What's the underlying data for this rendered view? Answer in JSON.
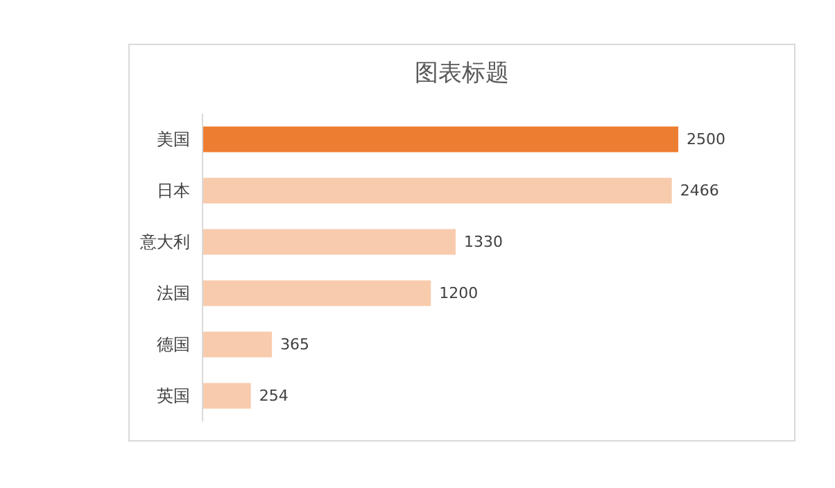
{
  "chart_data": {
    "type": "bar",
    "orientation": "horizontal",
    "title": "图表标题",
    "categories": [
      "美国",
      "日本",
      "意大利",
      "法国",
      "德国",
      "英国"
    ],
    "values": [
      2500,
      2466,
      1330,
      1200,
      365,
      254
    ],
    "colors": [
      "#ed7d31",
      "#f8cbad",
      "#f8cbad",
      "#f8cbad",
      "#f8cbad",
      "#f8cbad"
    ],
    "data_labels": true
  }
}
